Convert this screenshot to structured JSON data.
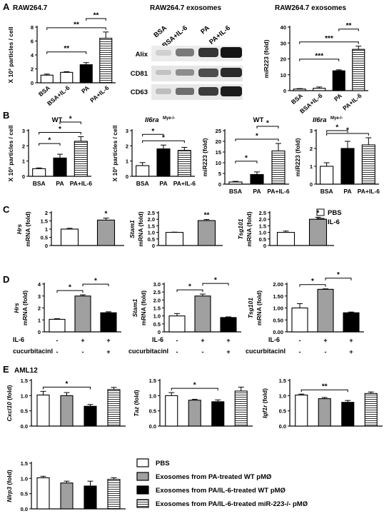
{
  "figure": {
    "panel_letters": [
      "A",
      "B",
      "C",
      "D",
      "E"
    ],
    "A": {
      "cell_line_title": "RAW264.7",
      "blot_title": "RAW264.7 exosomes",
      "mir_title": "RAW264.7 exosomes",
      "blot_lanes": [
        "BSA",
        "BSA+IL-6",
        "PA",
        "PA+IL-6"
      ],
      "blot_rows": [
        "Alix",
        "CD81",
        "CD63"
      ]
    },
    "B": {
      "titles": [
        "WT",
        "Il6ra",
        "WT",
        "Il6ra"
      ],
      "superscript": "Mye-/-"
    },
    "C": {
      "legend": [
        "PBS",
        "IL-6"
      ]
    },
    "D": {
      "row_labels": [
        "IL-6",
        "cucurbitacinI"
      ],
      "il6_signs": [
        "-",
        "+",
        "+"
      ],
      "cuc_signs": [
        "-",
        "-",
        "+"
      ]
    },
    "E": {
      "title": "AML12",
      "legend": [
        "PBS",
        "Exosomes from PA-treated WT pMØ",
        "Exosomes from PA/IL-6-treated WT pMØ",
        "Exosomes from PA/IL-6-treated miR-223-/- pMØ"
      ]
    }
  },
  "colors": {
    "black": "#000000",
    "grey": "#a0a0a0",
    "white": "#ffffff"
  },
  "chart_data": [
    {
      "id": "A1",
      "type": "bar",
      "categories": [
        "BSA",
        "BSA+IL-6",
        "PA",
        "PA+IL-6"
      ],
      "values": [
        1.1,
        1.5,
        2.6,
        6.4
      ],
      "errors": [
        0.15,
        0.1,
        0.3,
        0.9
      ],
      "fills": [
        "white",
        "white",
        "black",
        "hatch"
      ],
      "ylabel": "X 10³ particles / cell",
      "ylim": [
        0,
        8
      ],
      "yticks": [
        0,
        2,
        4,
        6,
        8
      ],
      "sig": [
        {
          "a": 0,
          "b": 3,
          "label": "**"
        },
        {
          "a": 0,
          "b": 2,
          "label": "**"
        },
        {
          "a": 2,
          "b": 3,
          "label": "**"
        }
      ]
    },
    {
      "id": "A2",
      "type": "bar",
      "categories": [
        "BSA",
        "BSA+IL-6",
        "PA",
        "PA+IL-6"
      ],
      "values": [
        1,
        1.5,
        12.5,
        26
      ],
      "errors": [
        0.3,
        0.8,
        0.6,
        2
      ],
      "fills": [
        "white",
        "white",
        "black",
        "hatch"
      ],
      "ylabel": "miR223 (fold)",
      "ylim": [
        0,
        40
      ],
      "yticks": [
        0,
        10,
        20,
        30,
        40
      ],
      "sig": [
        {
          "a": 0,
          "b": 3,
          "label": "***"
        },
        {
          "a": 0,
          "b": 2,
          "label": "***"
        },
        {
          "a": 2,
          "b": 3,
          "label": "**"
        }
      ]
    },
    {
      "id": "B1",
      "type": "bar",
      "categories": [
        "BSA",
        "PA",
        "PA+IL-6"
      ],
      "values": [
        0.5,
        1.2,
        2.3
      ],
      "errors": [
        0.05,
        0.25,
        0.3
      ],
      "fills": [
        "white",
        "black",
        "hatch"
      ],
      "ylabel": "X 10³ particles / cell",
      "ylim": [
        0,
        3
      ],
      "yticks": [
        0,
        1,
        2,
        3
      ],
      "sig": [
        {
          "a": 0,
          "b": 2,
          "label": "*"
        },
        {
          "a": 0,
          "b": 1,
          "label": "*"
        },
        {
          "a": 1,
          "b": 2,
          "label": "*"
        }
      ]
    },
    {
      "id": "B2",
      "type": "bar",
      "categories": [
        "BSA",
        "PA",
        "PA+IL-6"
      ],
      "values": [
        0.7,
        1.8,
        1.7
      ],
      "errors": [
        0.2,
        0.25,
        0.2
      ],
      "fills": [
        "white",
        "black",
        "hatch"
      ],
      "ylabel": "X 10³ particles / cell",
      "ylim": [
        0,
        3
      ],
      "yticks": [
        0,
        1,
        2,
        3
      ],
      "sig": [
        {
          "a": 0,
          "b": 2,
          "label": "*"
        },
        {
          "a": 0,
          "b": 1,
          "label": "*"
        }
      ]
    },
    {
      "id": "B3",
      "type": "bar",
      "categories": [
        "BSA",
        "PA",
        "PA+IL-6"
      ],
      "values": [
        1,
        4.5,
        15.5
      ],
      "errors": [
        0.3,
        1.2,
        3.5
      ],
      "fills": [
        "white",
        "black",
        "hatch"
      ],
      "ylabel": "miR223 (fold)",
      "ylim": [
        0,
        25
      ],
      "yticks": [
        0,
        5,
        10,
        15,
        20,
        25
      ],
      "sig": [
        {
          "a": 0,
          "b": 2,
          "label": "*"
        },
        {
          "a": 0,
          "b": 1,
          "label": "*"
        },
        {
          "a": 1,
          "b": 2,
          "label": "*"
        }
      ]
    },
    {
      "id": "B4",
      "type": "bar",
      "categories": [
        "BSA",
        "PA",
        "PA+IL-6"
      ],
      "values": [
        1,
        2,
        2.2
      ],
      "errors": [
        0.2,
        0.4,
        0.4
      ],
      "fills": [
        "white",
        "black",
        "hatch"
      ],
      "ylabel": "miR223 (fold)",
      "ylim": [
        0,
        3
      ],
      "yticks": [
        0,
        1,
        2,
        3
      ],
      "sig": [
        {
          "a": 0,
          "b": 2,
          "label": "*"
        },
        {
          "a": 0,
          "b": 1,
          "label": "*"
        }
      ]
    },
    {
      "id": "C1",
      "type": "bar",
      "categories": [
        "PBS",
        "IL-6"
      ],
      "values": [
        1,
        1.55
      ],
      "errors": [
        0.05,
        0.12
      ],
      "fills": [
        "white",
        "grey"
      ],
      "ylabel": "mRNA (fold)",
      "ylabel_gene": "Hrs",
      "ylim": [
        0,
        2
      ],
      "yticks": [
        0,
        0.5,
        1,
        1.5,
        2
      ],
      "ytick_labels": [
        "0",
        "0.5",
        "1",
        "1.5",
        "2"
      ],
      "sig": [
        {
          "a": 1,
          "b": 1,
          "label": "*"
        }
      ]
    },
    {
      "id": "C2",
      "type": "bar",
      "categories": [
        "PBS",
        "IL-6"
      ],
      "values": [
        1,
        1.9
      ],
      "errors": [
        0.02,
        0.08
      ],
      "fills": [
        "white",
        "grey"
      ],
      "ylabel": "mRNA (fold)",
      "ylabel_gene": "Stam1",
      "ylim": [
        0,
        2.5
      ],
      "yticks": [
        0,
        0.5,
        1,
        1.5,
        2,
        2.5
      ],
      "ytick_labels": [
        "0",
        "0.5",
        "1.0",
        "1.5",
        "2.0",
        "2.5"
      ],
      "sig": [
        {
          "a": 1,
          "b": 1,
          "label": "**"
        }
      ]
    },
    {
      "id": "C3",
      "type": "bar",
      "categories": [
        "PBS",
        "IL-6"
      ],
      "values": [
        1,
        2
      ],
      "errors": [
        0.1,
        0.15
      ],
      "fills": [
        "white",
        "grey"
      ],
      "ylabel": "mRNA (fold)",
      "ylabel_gene": "Tsg101",
      "ylim": [
        0,
        2.5
      ],
      "yticks": [
        0,
        0.5,
        1,
        1.5,
        2,
        2.5
      ],
      "ytick_labels": [
        "0",
        "0.5",
        "1.0",
        "1.5",
        "2.0",
        "2.5"
      ],
      "sig": [
        {
          "a": 1,
          "b": 1,
          "label": "*"
        }
      ]
    },
    {
      "id": "D1",
      "type": "bar",
      "categories": [
        "-/-",
        "+/-",
        "+/+"
      ],
      "values": [
        1.05,
        3,
        1.6
      ],
      "errors": [
        0.05,
        0.1,
        0.08
      ],
      "fills": [
        "white",
        "grey",
        "black"
      ],
      "ylabel": "mRNA (fold)",
      "ylabel_gene": "Hrs",
      "ylim": [
        0,
        4
      ],
      "yticks": [
        0,
        1,
        2,
        3,
        4
      ],
      "ytick_labels": [
        "0",
        "1",
        "2",
        "3",
        "4"
      ],
      "sig": [
        {
          "a": 0,
          "b": 1,
          "label": "*"
        },
        {
          "a": 1,
          "b": 2,
          "label": "*"
        }
      ]
    },
    {
      "id": "D2",
      "type": "bar",
      "categories": [
        "-/-",
        "+/-",
        "+/+"
      ],
      "values": [
        1,
        2.25,
        0.9
      ],
      "errors": [
        0.15,
        0.12,
        0.04
      ],
      "fills": [
        "white",
        "grey",
        "black"
      ],
      "ylabel": "mRNA (fold)",
      "ylabel_gene": "Stam1",
      "ylim": [
        0,
        3
      ],
      "yticks": [
        0,
        0.5,
        1,
        1.5,
        2,
        2.5,
        3
      ],
      "ytick_labels": [
        "0",
        "0.5",
        "1.0",
        "1.5",
        "2.0",
        "2.5",
        "3.0"
      ],
      "sig": [
        {
          "a": 0,
          "b": 1,
          "label": "*"
        },
        {
          "a": 1,
          "b": 2,
          "label": "*"
        }
      ]
    },
    {
      "id": "D3",
      "type": "bar",
      "categories": [
        "-/-",
        "+/-",
        "+/+"
      ],
      "values": [
        1,
        1.78,
        0.8
      ],
      "errors": [
        0.18,
        0.02,
        0.03
      ],
      "fills": [
        "white",
        "grey",
        "black"
      ],
      "ylabel": "mRNA (fold)",
      "ylabel_gene": "Tsg101",
      "ylim": [
        0,
        2
      ],
      "yticks": [
        0,
        0.5,
        1,
        1.5,
        2
      ],
      "ytick_labels": [
        "0.00",
        "0.50",
        "1.00",
        "1.50",
        "2.00"
      ],
      "sig": [
        {
          "a": 0,
          "b": 1,
          "label": "*"
        },
        {
          "a": 1,
          "b": 2,
          "label": "*"
        }
      ]
    },
    {
      "id": "E1",
      "type": "bar",
      "categories": [
        "PBS",
        "PA WT",
        "PA/IL-6 WT",
        "PA/IL-6 miR-223-/-"
      ],
      "values": [
        1.02,
        1,
        0.65,
        1.2
      ],
      "errors": [
        0.12,
        0.1,
        0.06,
        0.07
      ],
      "fills": [
        "white",
        "grey",
        "black",
        "hatch"
      ],
      "ylabel": "(fold)",
      "ylabel_gene": "Cxcl10",
      "ylim": [
        0,
        1.5
      ],
      "yticks": [
        0,
        0.5,
        1,
        1.5
      ],
      "ytick_labels": [
        "0.0",
        "0.5",
        "1.0",
        "1.5"
      ],
      "sig": [
        {
          "a": 0,
          "b": 2,
          "label": "*"
        }
      ]
    },
    {
      "id": "E2",
      "type": "bar",
      "categories": [
        "PBS",
        "PA WT",
        "PA/IL-6 WT",
        "PA/IL-6 miR-223-/-"
      ],
      "values": [
        1,
        0.85,
        0.8,
        1.15
      ],
      "errors": [
        0.1,
        0.03,
        0.06,
        0.13
      ],
      "fills": [
        "white",
        "grey",
        "black",
        "hatch"
      ],
      "ylabel": "(fold)",
      "ylabel_gene": "Taz",
      "ylim": [
        0,
        1.5
      ],
      "yticks": [
        0,
        0.5,
        1,
        1.5
      ],
      "ytick_labels": [
        "0.0",
        "0.5",
        "1.0",
        "1.5"
      ],
      "sig": [
        {
          "a": 0,
          "b": 2,
          "label": "*"
        }
      ]
    },
    {
      "id": "E3",
      "type": "bar",
      "categories": [
        "PBS",
        "PA WT",
        "PA/IL-6 WT",
        "PA/IL-6 miR-223-/-"
      ],
      "values": [
        1.02,
        0.9,
        0.78,
        1.07
      ],
      "errors": [
        0.03,
        0.04,
        0.06,
        0.05
      ],
      "fills": [
        "white",
        "grey",
        "black",
        "hatch"
      ],
      "ylabel": "(fold)",
      "ylabel_gene": "Igf1r",
      "ylim": [
        0,
        1.5
      ],
      "yticks": [
        0,
        0.5,
        1,
        1.5
      ],
      "ytick_labels": [
        "0.0",
        "0.5",
        "1.0",
        "1.5"
      ],
      "sig": [
        {
          "a": 0,
          "b": 2,
          "label": "**"
        }
      ]
    },
    {
      "id": "E4",
      "type": "bar",
      "categories": [
        "PBS",
        "PA WT",
        "PA/IL-6 WT",
        "PA/IL-6 miR-223-/-"
      ],
      "values": [
        1.02,
        0.85,
        0.75,
        0.97
      ],
      "errors": [
        0.05,
        0.06,
        0.16,
        0.05
      ],
      "fills": [
        "white",
        "grey",
        "black",
        "hatch"
      ],
      "ylabel": "(fold)",
      "ylabel_gene": "Nlrp3",
      "ylim": [
        0,
        1.5
      ],
      "yticks": [
        0,
        0.5,
        1,
        1.5
      ],
      "ytick_labels": [
        "0.0",
        "0.5",
        "1.0",
        "1.5"
      ],
      "sig": []
    }
  ]
}
